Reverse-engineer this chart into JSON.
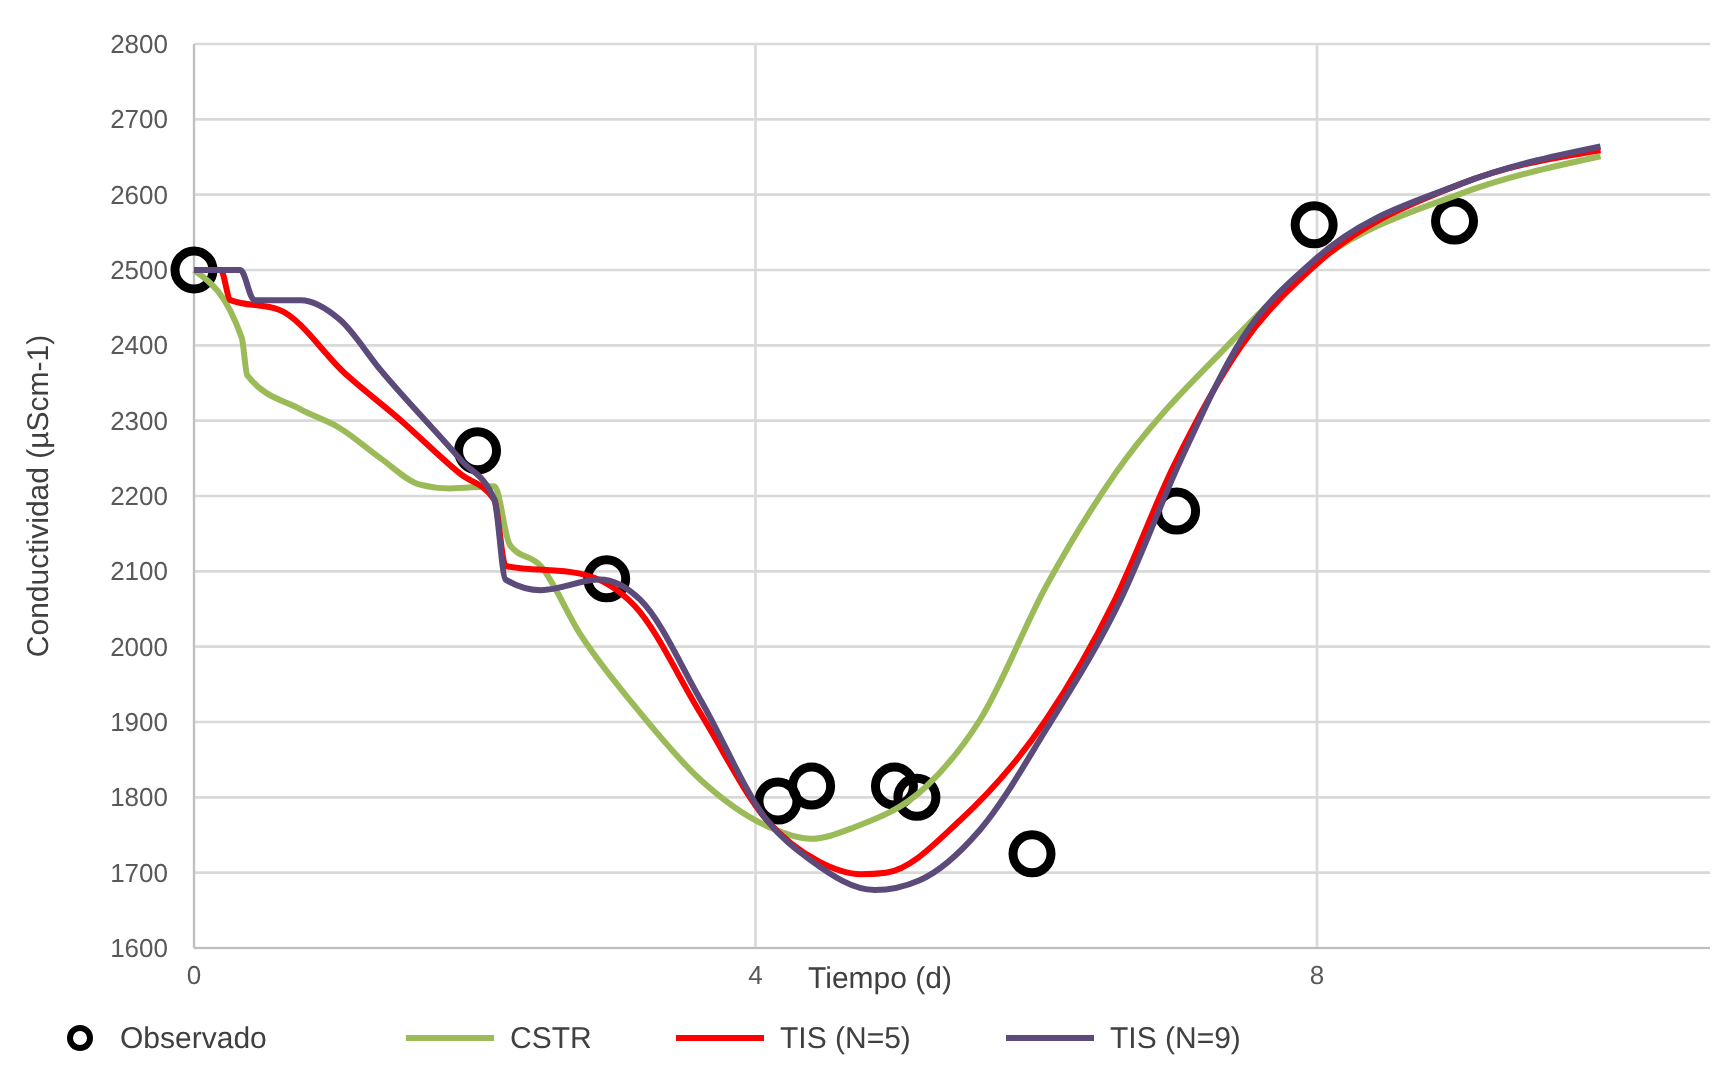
{
  "chart_data": {
    "type": "line",
    "xlabel": "Tiempo (d)",
    "ylabel": "Conductividad (µScm-1)",
    "xlim": [
      0,
      10.8
    ],
    "xticks": [
      0,
      4,
      8
    ],
    "ylim": [
      1600,
      2800
    ],
    "yticks": [
      1600,
      1700,
      1800,
      1900,
      2000,
      2100,
      2200,
      2300,
      2400,
      2500,
      2600,
      2700,
      2800
    ],
    "grid": true,
    "legend": "bottom",
    "series": [
      {
        "name": "Observado",
        "type": "scatter",
        "marker": "circle",
        "color": "#000000",
        "x": [
          0,
          2.02,
          2.94,
          4.16,
          4.4,
          4.99,
          5.15,
          5.97,
          7.0,
          7.98,
          8.98
        ],
        "values": [
          2500,
          2260,
          2090,
          1795,
          1815,
          1815,
          1800,
          1725,
          2180,
          2560,
          2565
        ]
      },
      {
        "name": "CSTR",
        "marker": "none",
        "color": "#9bbb59",
        "x": [
          0,
          0.34,
          0.38,
          0.76,
          1.04,
          1.33,
          1.61,
          1.82,
          2.14,
          2.25,
          2.47,
          2.75,
          3.14,
          3.61,
          4.08,
          4.4,
          4.7,
          5.22,
          5.6,
          6.07,
          6.56,
          7.36,
          7.98,
          9.02,
          10.02
        ],
        "values": [
          2500,
          2410,
          2360,
          2315,
          2290,
          2250,
          2215,
          2210,
          2213,
          2135,
          2107,
          2017,
          1921,
          1823,
          1762,
          1745,
          1760,
          1815,
          1903,
          2080,
          2229,
          2399,
          2508,
          2601,
          2651
        ]
      },
      {
        "name": "TIS (N=5)",
        "marker": "none",
        "color": "#ff0000",
        "x": [
          0,
          0.19,
          0.26,
          0.61,
          1.08,
          1.47,
          1.9,
          2.14,
          2.22,
          2.75,
          3.14,
          3.61,
          4.08,
          4.45,
          4.75,
          4.93,
          5.46,
          6.07,
          6.56,
          6.98,
          7.46,
          7.98,
          9.02,
          10.02
        ],
        "values": [
          2500,
          2500,
          2460,
          2447,
          2362,
          2301,
          2229,
          2195,
          2107,
          2097,
          2054,
          1911,
          1770,
          1715,
          1698,
          1700,
          1770,
          1903,
          2062,
          2240,
          2399,
          2505,
          2614,
          2659
        ]
      },
      {
        "name": "TIS (N=9)",
        "marker": "none",
        "color": "#5b4a7a",
        "x": [
          0,
          0.33,
          0.43,
          0.76,
          1.04,
          1.33,
          1.9,
          2.14,
          2.22,
          2.47,
          2.89,
          3.18,
          3.61,
          4.08,
          4.39,
          4.85,
          5.17,
          5.6,
          6.07,
          6.6,
          7.03,
          7.46,
          7.98,
          9.02,
          10.02
        ],
        "values": [
          2500,
          2500,
          2460,
          2460,
          2434,
          2367,
          2248,
          2195,
          2089,
          2075,
          2089,
          2062,
          1929,
          1770,
          1717,
          1677,
          1690,
          1757,
          1890,
          2062,
          2248,
          2407,
          2513,
          2614,
          2664
        ]
      }
    ]
  }
}
